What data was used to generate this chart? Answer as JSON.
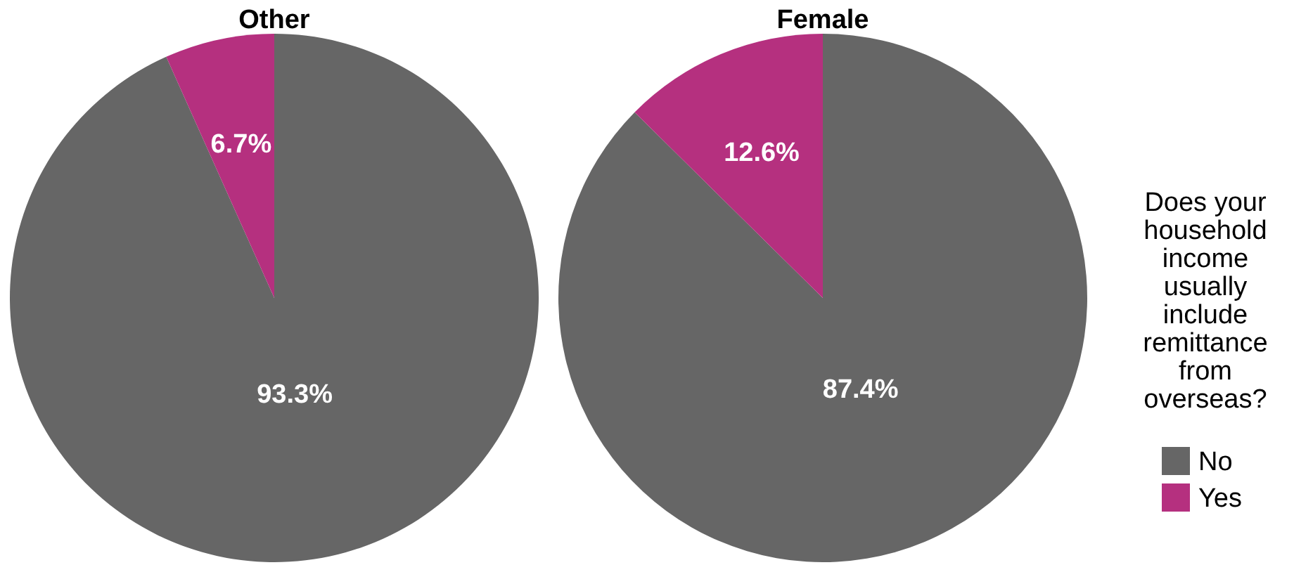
{
  "chart_data": [
    {
      "type": "pie",
      "title": "Other",
      "categories": [
        null,
        null
      ],
      "values": [
        93.3,
        6.7
      ],
      "colors": [
        "#666666",
        "#b5307f"
      ],
      "value_labels": [
        "93.3%",
        "6.7%"
      ],
      "legend": false
    },
    {
      "type": "pie",
      "title": "Female",
      "categories": [
        "No",
        "Yes"
      ],
      "values": [
        87.4,
        12.6
      ],
      "colors": [
        "#666666",
        "#b5307f"
      ],
      "value_labels": [
        "87.4%",
        "12.6%"
      ],
      "legend": "right",
      "legend_title": "Does your household income usually include remittance from overseas?"
    }
  ]
}
